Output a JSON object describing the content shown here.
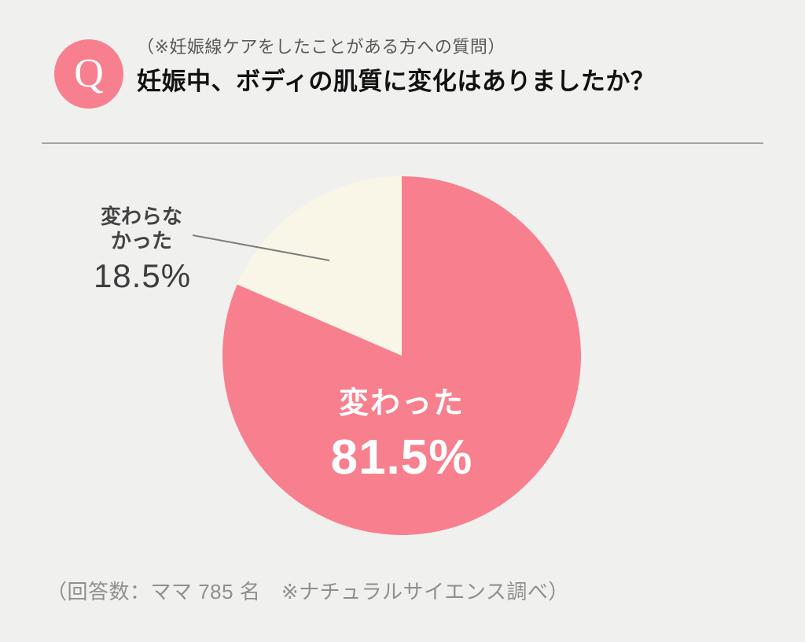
{
  "header": {
    "badge": "Q",
    "note": "（※妊娠線ケアをしたことがある方への質問）",
    "title": "妊娠中、ボディの肌質に変化はありましたか？"
  },
  "chart_data": {
    "type": "pie",
    "title": "妊娠中、ボディの肌質に変化はありましたか？",
    "unit": "%",
    "start_angle": "top",
    "direction": "clockwise",
    "legend_position": "none",
    "slices": [
      {
        "label": "変わった",
        "value": 81.5,
        "color": "#f87f8d",
        "text_color": "#ffffff",
        "label_placement": "inside"
      },
      {
        "label": "変わらなかった",
        "value": 18.5,
        "color": "#f9f6e7",
        "text_color": "#3f3f3f",
        "label_placement": "outside-left"
      }
    ]
  },
  "labels": {
    "inside_name": "変わった",
    "inside_pct": "81.5%",
    "outside_name_line1": "変わらな",
    "outside_name_line2": "かった",
    "outside_pct": "18.5%"
  },
  "caption": {
    "text": "（回答数：ママ 785 名　※ナチュラルサイエンス調べ）"
  },
  "colors": {
    "background": "#f0f0ef",
    "accent_pink": "#f87f8d",
    "slice_cream": "#f9f6e7",
    "title_text": "#121212",
    "note_text": "#595959",
    "label_text": "#3f3f3f",
    "caption_text": "#8f8f8f",
    "divider": "#a6a6a6",
    "leader_line": "#7c7c7c"
  }
}
